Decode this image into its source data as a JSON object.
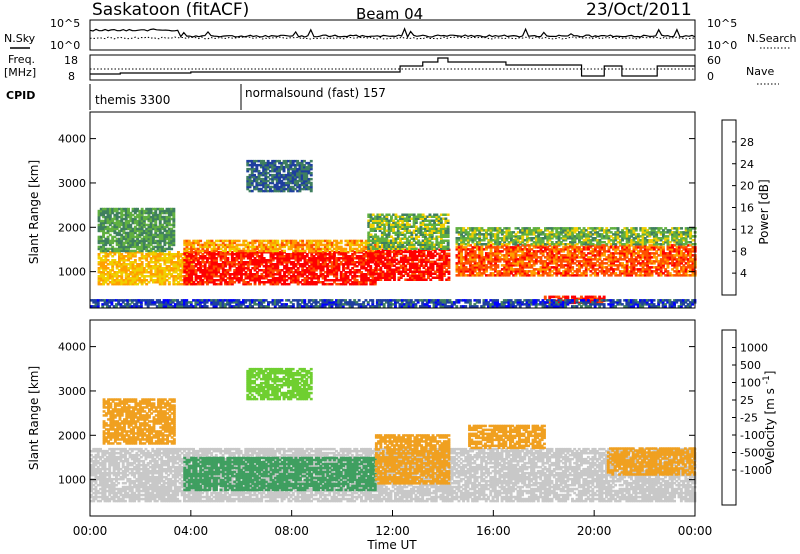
{
  "header": {
    "station": "Saskatoon (fitACF)",
    "beam": "Beam 04",
    "date": "23/Oct/2011"
  },
  "noise_panel": {
    "left_label": "N.Sky",
    "right_label": "N.Search",
    "left_ticks": [
      "10^5",
      "10^0"
    ],
    "right_ticks": [
      "10^5",
      "10^0"
    ]
  },
  "freq_panel": {
    "left_label_line1": "Freq.",
    "left_label_line2": "[MHz]",
    "right_label": "Nave",
    "left_ticks": [
      "18",
      "8"
    ],
    "right_ticks": [
      "60",
      "0"
    ],
    "freq_steps": [
      {
        "t": 0.0,
        "v": 8.6
      },
      {
        "t": 14.0,
        "v": 8.6
      },
      {
        "t": 14.1,
        "v": 18.0
      },
      {
        "t": 14.2,
        "v": 9.4
      },
      {
        "t": 24.0,
        "v": 9.4
      }
    ]
  },
  "cpid": {
    "label": "CPID",
    "segments": [
      {
        "name": "themis 3300",
        "start": 0.0
      },
      {
        "name": "normalsound (fast) 157",
        "start": 6.0
      }
    ]
  },
  "colors": {
    "power_scale": [
      "#0000ff",
      "#1f3f9f",
      "#3f7f5f",
      "#60b040",
      "#f0d000",
      "#ff9f00",
      "#ff5000",
      "#ff0000"
    ],
    "velocity_scale": [
      "#1f3fbf",
      "#2f6fa0",
      "#3f9f60",
      "#6fcf30",
      "#c8c8c8",
      "#c8c8c8",
      "#f0a020",
      "#ff7000",
      "#ff3000",
      "#ff0000"
    ]
  },
  "chart_data": [
    {
      "type": "heatmap",
      "name": "power",
      "xlabel": "",
      "ylabel": "Slant Range [km]",
      "xlim": [
        0,
        24
      ],
      "ylim": [
        180,
        4600
      ],
      "yticks": [
        "1000",
        "2000",
        "3000",
        "4000"
      ],
      "colorbar_label": "Power [dB]",
      "colorbar_ticks": [
        "4",
        "8",
        "12",
        "16",
        "20",
        "24",
        "28"
      ],
      "colorbar_range": [
        0,
        32
      ],
      "regions": [
        {
          "t0": 0.3,
          "t1": 4.0,
          "r0": 700,
          "r1": 1450,
          "value": 20
        },
        {
          "t0": 0.3,
          "t1": 3.3,
          "r0": 1450,
          "r1": 2400,
          "value": 12
        },
        {
          "t0": 3.7,
          "t1": 11.3,
          "r0": 700,
          "r1": 1450,
          "value": 30
        },
        {
          "t0": 3.7,
          "t1": 11.3,
          "r0": 1450,
          "r1": 1700,
          "value": 22
        },
        {
          "t0": 6.2,
          "t1": 8.8,
          "r0": 2800,
          "r1": 3500,
          "value": 8
        },
        {
          "t0": 11.3,
          "t1": 14.2,
          "r0": 800,
          "r1": 1500,
          "value": 30
        },
        {
          "t0": 11.0,
          "t1": 14.2,
          "r0": 1500,
          "r1": 2300,
          "value": 14
        },
        {
          "t0": 14.5,
          "t1": 24.0,
          "r0": 900,
          "r1": 1600,
          "value": 26
        },
        {
          "t0": 14.5,
          "t1": 24.0,
          "r0": 1600,
          "r1": 2000,
          "value": 14
        },
        {
          "t0": 18.0,
          "t1": 20.4,
          "r0": 280,
          "r1": 420,
          "value": 30
        },
        {
          "t0": 0.0,
          "t1": 24.0,
          "r0": 200,
          "r1": 380,
          "value": 6
        }
      ]
    },
    {
      "type": "heatmap",
      "name": "velocity",
      "xlabel": "Time UT",
      "ylabel": "Slant Range [km]",
      "xlim": [
        0,
        24
      ],
      "ylim": [
        180,
        4600
      ],
      "xticks": [
        "00:00",
        "04:00",
        "08:00",
        "12:00",
        "16:00",
        "20:00",
        "00:00"
      ],
      "yticks": [
        "1000",
        "2000",
        "3000",
        "4000"
      ],
      "colorbar_label": "Velocity [m s^-1]",
      "colorbar_ticks": [
        "1000",
        "500",
        "100",
        "25",
        "-25",
        "-100",
        "-500",
        "-1000"
      ],
      "regions": [
        {
          "t0": 0.0,
          "t1": 24.0,
          "r0": 500,
          "r1": 1700,
          "value": 0
        },
        {
          "t0": 0.5,
          "t1": 3.3,
          "r0": 1800,
          "r1": 2800,
          "value": -200
        },
        {
          "t0": 3.7,
          "t1": 11.3,
          "r0": 750,
          "r1": 1500,
          "value": 150
        },
        {
          "t0": 11.3,
          "t1": 14.2,
          "r0": 900,
          "r1": 2000,
          "value": -200
        },
        {
          "t0": 15.0,
          "t1": 18.0,
          "r0": 1700,
          "r1": 2200,
          "value": -200
        },
        {
          "t0": 20.5,
          "t1": 24.0,
          "r0": 1100,
          "r1": 1700,
          "value": -150
        },
        {
          "t0": 6.2,
          "t1": 8.8,
          "r0": 2800,
          "r1": 3500,
          "value": 40
        }
      ]
    }
  ]
}
